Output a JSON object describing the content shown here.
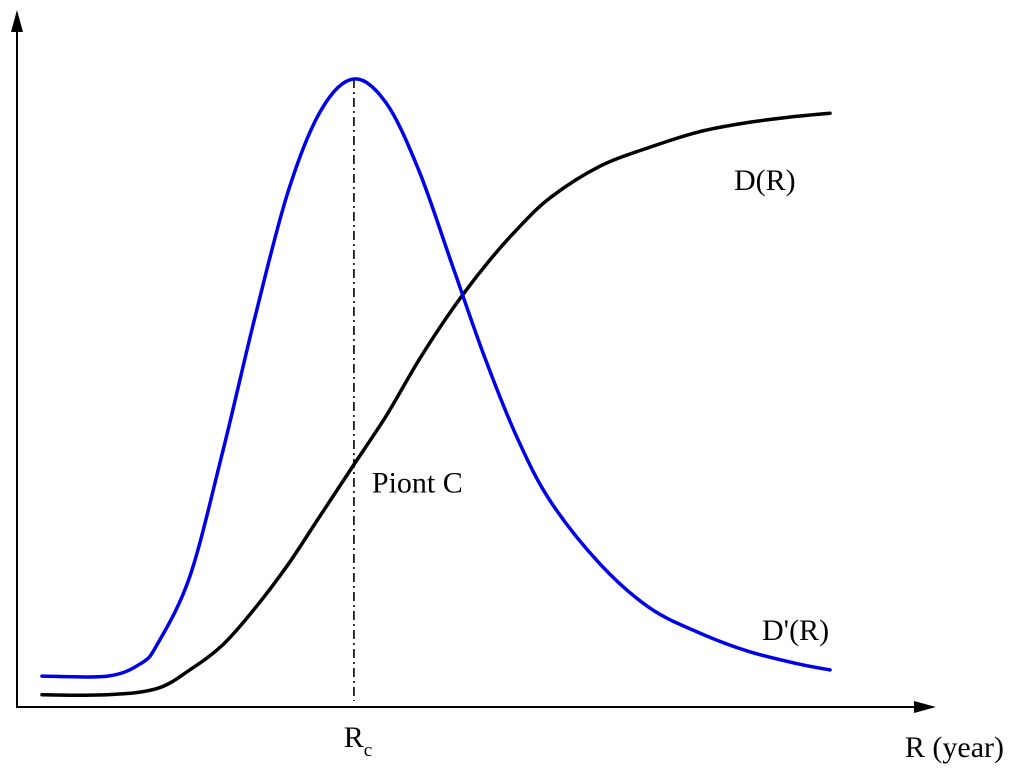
{
  "chart_data": {
    "type": "line",
    "title": "",
    "xlabel": "R (year)",
    "ylabel": "",
    "x_ticks": [
      {
        "main": "R",
        "sub": "c",
        "x": 0.0
      }
    ],
    "xlim": [
      -1.9,
      2.9
    ],
    "ylim": [
      0,
      1.0
    ],
    "grid": false,
    "legend": "none",
    "series": [
      {
        "name": "D(R)",
        "color": "#000000",
        "x": [
          -1.9,
          -1.5,
          -1.2,
          -1.0,
          -0.8,
          -0.6,
          -0.4,
          -0.2,
          0.0,
          0.2,
          0.4,
          0.6,
          0.8,
          1.0,
          1.2,
          1.5,
          1.8,
          2.1,
          2.4,
          2.7,
          2.9
        ],
        "y": [
          0.01,
          0.01,
          0.02,
          0.05,
          0.09,
          0.15,
          0.22,
          0.3,
          0.38,
          0.46,
          0.55,
          0.63,
          0.7,
          0.76,
          0.81,
          0.86,
          0.89,
          0.915,
          0.93,
          0.94,
          0.945
        ]
      },
      {
        "name": "D'(R)",
        "color": "#0000e6",
        "x": [
          -1.9,
          -1.5,
          -1.3,
          -1.2,
          -1.0,
          -0.8,
          -0.6,
          -0.4,
          -0.2,
          0.0,
          0.2,
          0.4,
          0.6,
          0.8,
          1.0,
          1.2,
          1.5,
          1.8,
          2.1,
          2.4,
          2.7,
          2.9
        ],
        "y": [
          0.04,
          0.04,
          0.06,
          0.09,
          0.2,
          0.4,
          0.62,
          0.82,
          0.95,
          1.0,
          0.96,
          0.85,
          0.7,
          0.55,
          0.42,
          0.32,
          0.22,
          0.15,
          0.11,
          0.08,
          0.06,
          0.05
        ]
      }
    ],
    "annotations": [
      {
        "text": "D(R)",
        "series": "D(R)"
      },
      {
        "text": "D'(R)",
        "series": "D'(R)"
      },
      {
        "text": "Piont C",
        "x": 0.0,
        "y": 0.38
      },
      {
        "text": "",
        "kind": "vertical-dashdot-line",
        "x": 0.0
      }
    ]
  }
}
